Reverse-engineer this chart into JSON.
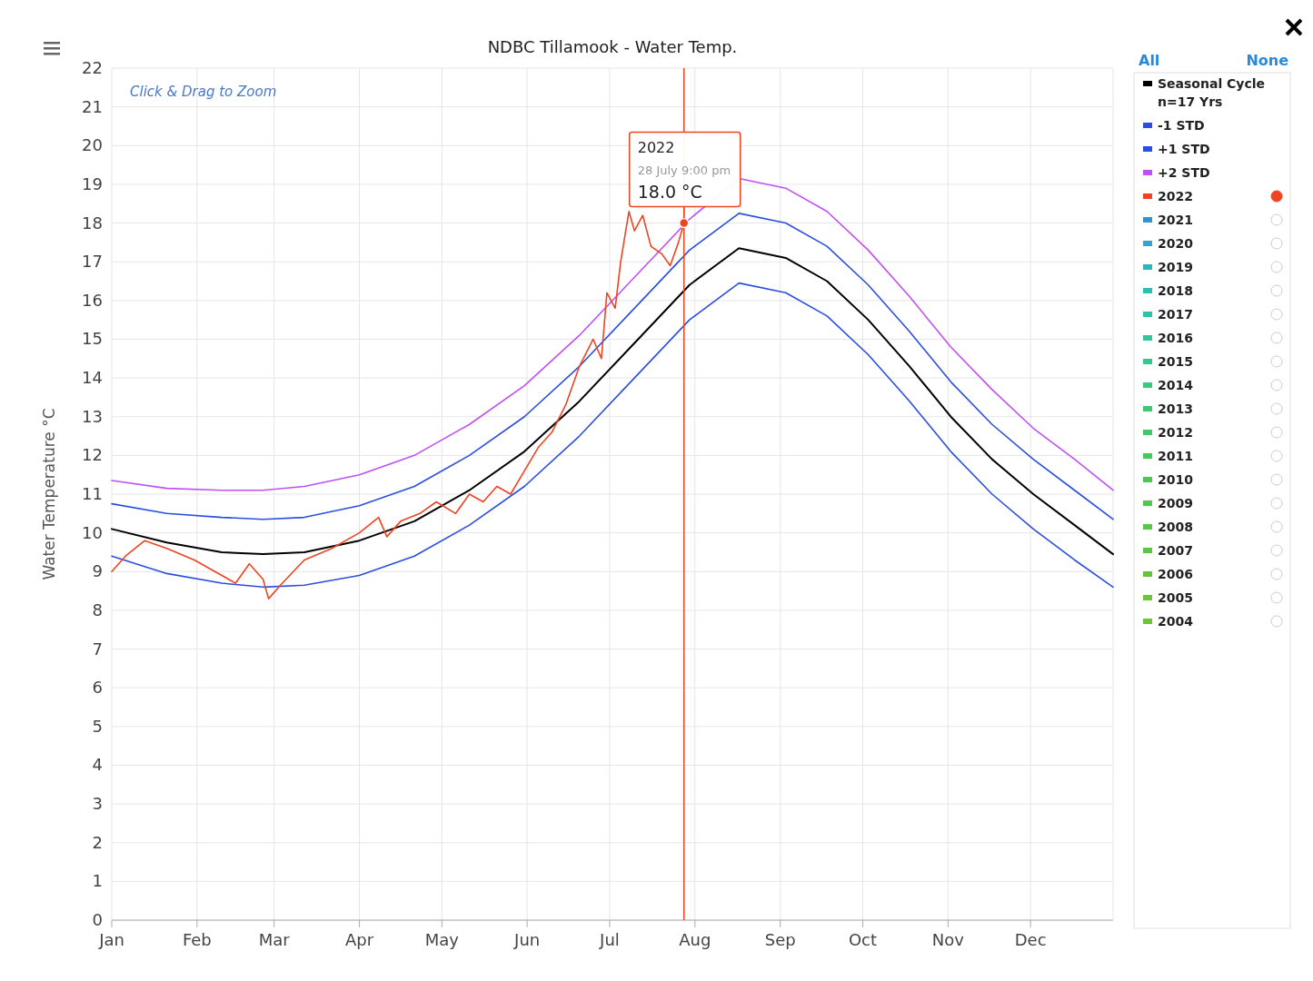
{
  "chart_data": {
    "type": "line",
    "title": "NDBC Tillamook - Water Temp.",
    "ylabel": "Water Temperature °C",
    "xlim": [
      "--01-01",
      "--12-31"
    ],
    "ylim": [
      0,
      22
    ],
    "xticks": [
      {
        "value": "--01-01",
        "label": "Jan"
      },
      {
        "value": "--02-01",
        "label": "Feb"
      },
      {
        "value": "--03-01",
        "label": "Mar"
      },
      {
        "value": "--04-01",
        "label": "Apr"
      },
      {
        "value": "--05-01",
        "label": "May"
      },
      {
        "value": "--06-01",
        "label": "Jun"
      },
      {
        "value": "--07-01",
        "label": "Jul"
      },
      {
        "value": "--08-01",
        "label": "Aug"
      },
      {
        "value": "--09-01",
        "label": "Sep"
      },
      {
        "value": "--10-01",
        "label": "Oct"
      },
      {
        "value": "--11-01",
        "label": "Nov"
      },
      {
        "value": "--12-01",
        "label": "Dec"
      }
    ],
    "yticks": [
      0,
      1,
      2,
      3,
      4,
      5,
      6,
      7,
      8,
      9,
      10,
      11,
      12,
      13,
      14,
      15,
      16,
      17,
      18,
      19,
      20,
      21,
      22
    ],
    "grid": true,
    "legend": "right",
    "marker": "none",
    "line_style": "solid",
    "x": [
      "--01-01",
      "--01-21",
      "--02-10",
      "--02-25",
      "--03-12",
      "--04-01",
      "--04-21",
      "--05-11",
      "--05-31",
      "--06-20",
      "--07-10",
      "--07-30",
      "--08-17",
      "--09-03",
      "--09-18",
      "--10-03",
      "--10-18",
      "--11-02",
      "--11-17",
      "--12-02",
      "--12-17",
      "--12-31"
    ],
    "series": [
      {
        "name": "Seasonal Cycle\nn=17 Yrs",
        "color": "#000000",
        "values": [
          10.1,
          9.75,
          9.5,
          9.45,
          9.5,
          9.8,
          10.3,
          11.1,
          12.1,
          13.4,
          14.9,
          16.4,
          17.35,
          17.1,
          16.5,
          15.5,
          14.3,
          13.0,
          11.9,
          11.0,
          10.2,
          9.45
        ]
      },
      {
        "name": "-1 STD",
        "color": "#2a4fe0",
        "values": [
          9.4,
          8.95,
          8.7,
          8.6,
          8.65,
          8.9,
          9.4,
          10.2,
          11.2,
          12.5,
          14.0,
          15.5,
          16.45,
          16.2,
          15.6,
          14.6,
          13.4,
          12.1,
          11.0,
          10.1,
          9.3,
          8.6
        ]
      },
      {
        "name": "+1 STD",
        "color": "#2a4fe0",
        "values": [
          10.75,
          10.5,
          10.4,
          10.35,
          10.4,
          10.7,
          11.2,
          12.0,
          13.0,
          14.3,
          15.8,
          17.3,
          18.25,
          18.0,
          17.4,
          16.4,
          15.2,
          13.9,
          12.8,
          11.9,
          11.1,
          10.35
        ]
      },
      {
        "name": "+2 STD",
        "color": "#c050f5",
        "values": [
          11.35,
          11.15,
          11.1,
          11.1,
          11.2,
          11.5,
          12.0,
          12.8,
          13.8,
          15.1,
          16.6,
          18.1,
          19.15,
          18.9,
          18.3,
          17.3,
          16.1,
          14.8,
          13.7,
          12.7,
          11.9,
          11.1
        ]
      },
      {
        "name": "2022",
        "color": "#ee4422",
        "x": [
          "--01-01",
          "--01-06",
          "--01-13",
          "--01-21",
          "--01-31",
          "--02-10",
          "--02-15",
          "--02-20",
          "--02-25",
          "--02-27",
          "--03-04",
          "--03-12",
          "--03-22",
          "--04-01",
          "--04-08",
          "--04-11",
          "--04-16",
          "--04-23",
          "--04-29",
          "--05-06",
          "--05-11",
          "--05-16",
          "--05-21",
          "--05-26",
          "--05-31",
          "--06-05",
          "--06-10",
          "--06-15",
          "--06-20",
          "--06-25",
          "--06-28",
          "--06-30",
          "--07-03",
          "--07-05",
          "--07-08",
          "--07-10",
          "--07-13",
          "--07-16",
          "--07-20",
          "--07-23",
          "--07-26",
          "--07-28"
        ],
        "values": [
          9.0,
          9.4,
          9.8,
          9.6,
          9.3,
          8.9,
          8.7,
          9.2,
          8.8,
          8.3,
          8.7,
          9.3,
          9.6,
          10.0,
          10.4,
          9.9,
          10.3,
          10.5,
          10.8,
          10.5,
          11.0,
          10.8,
          11.2,
          11.0,
          11.6,
          12.2,
          12.6,
          13.3,
          14.3,
          15.0,
          14.5,
          16.2,
          15.8,
          17.0,
          18.3,
          17.8,
          18.2,
          17.4,
          17.2,
          16.9,
          17.5,
          18.0
        ]
      },
      {
        "name": "2021",
        "color": "#3a8fcf",
        "values": [
          null,
          null,
          null,
          null,
          null,
          null,
          null,
          null,
          null,
          null,
          null,
          null,
          null,
          null,
          null,
          null,
          null,
          null,
          null,
          null,
          null,
          null
        ]
      },
      {
        "name": "2020",
        "color": "#35a4c9",
        "values": [
          null,
          null,
          null,
          null,
          null,
          null,
          null,
          null,
          null,
          null,
          null,
          null,
          null,
          null,
          null,
          null,
          null,
          null,
          null,
          null,
          null,
          null
        ]
      },
      {
        "name": "2019",
        "color": "#30b2c2",
        "values": [
          null,
          null,
          null,
          null,
          null,
          null,
          null,
          null,
          null,
          null,
          null,
          null,
          null,
          null,
          null,
          null,
          null,
          null,
          null,
          null,
          null,
          null
        ]
      },
      {
        "name": "2018",
        "color": "#2fbcb6",
        "values": [
          null,
          null,
          null,
          null,
          null,
          null,
          null,
          null,
          null,
          null,
          null,
          null,
          null,
          null,
          null,
          null,
          null,
          null,
          null,
          null,
          null,
          null
        ]
      },
      {
        "name": "2017",
        "color": "#30c2a8",
        "values": [
          null,
          null,
          null,
          null,
          null,
          null,
          null,
          null,
          null,
          null,
          null,
          null,
          null,
          null,
          null,
          null,
          null,
          null,
          null,
          null,
          null,
          null
        ]
      },
      {
        "name": "2016",
        "color": "#33c699",
        "values": [
          null,
          null,
          null,
          null,
          null,
          null,
          null,
          null,
          null,
          null,
          null,
          null,
          null,
          null,
          null,
          null,
          null,
          null,
          null,
          null,
          null,
          null
        ]
      },
      {
        "name": "2015",
        "color": "#36c88b",
        "values": [
          null,
          null,
          null,
          null,
          null,
          null,
          null,
          null,
          null,
          null,
          null,
          null,
          null,
          null,
          null,
          null,
          null,
          null,
          null,
          null,
          null,
          null
        ]
      },
      {
        "name": "2014",
        "color": "#3ac97e",
        "values": [
          null,
          null,
          null,
          null,
          null,
          null,
          null,
          null,
          null,
          null,
          null,
          null,
          null,
          null,
          null,
          null,
          null,
          null,
          null,
          null,
          null,
          null
        ]
      },
      {
        "name": "2013",
        "color": "#3ec873",
        "values": [
          null,
          null,
          null,
          null,
          null,
          null,
          null,
          null,
          null,
          null,
          null,
          null,
          null,
          null,
          null,
          null,
          null,
          null,
          null,
          null,
          null,
          null
        ]
      },
      {
        "name": "2012",
        "color": "#43c868",
        "values": [
          null,
          null,
          null,
          null,
          null,
          null,
          null,
          null,
          null,
          null,
          null,
          null,
          null,
          null,
          null,
          null,
          null,
          null,
          null,
          null,
          null,
          null
        ]
      },
      {
        "name": "2011",
        "color": "#48c75e",
        "values": [
          null,
          null,
          null,
          null,
          null,
          null,
          null,
          null,
          null,
          null,
          null,
          null,
          null,
          null,
          null,
          null,
          null,
          null,
          null,
          null,
          null,
          null
        ]
      },
      {
        "name": "2010",
        "color": "#4cc755",
        "values": [
          null,
          null,
          null,
          null,
          null,
          null,
          null,
          null,
          null,
          null,
          null,
          null,
          null,
          null,
          null,
          null,
          null,
          null,
          null,
          null,
          null,
          null
        ]
      },
      {
        "name": "2009",
        "color": "#52c64d",
        "values": [
          null,
          null,
          null,
          null,
          null,
          null,
          null,
          null,
          null,
          null,
          null,
          null,
          null,
          null,
          null,
          null,
          null,
          null,
          null,
          null,
          null,
          null
        ]
      },
      {
        "name": "2008",
        "color": "#58c646",
        "values": [
          null,
          null,
          null,
          null,
          null,
          null,
          null,
          null,
          null,
          null,
          null,
          null,
          null,
          null,
          null,
          null,
          null,
          null,
          null,
          null,
          null,
          null
        ]
      },
      {
        "name": "2007",
        "color": "#5ec540",
        "values": [
          null,
          null,
          null,
          null,
          null,
          null,
          null,
          null,
          null,
          null,
          null,
          null,
          null,
          null,
          null,
          null,
          null,
          null,
          null,
          null,
          null,
          null
        ]
      },
      {
        "name": "2006",
        "color": "#64c53c",
        "values": [
          null,
          null,
          null,
          null,
          null,
          null,
          null,
          null,
          null,
          null,
          null,
          null,
          null,
          null,
          null,
          null,
          null,
          null,
          null,
          null,
          null,
          null
        ]
      },
      {
        "name": "2005",
        "color": "#69c539",
        "values": [
          null,
          null,
          null,
          null,
          null,
          null,
          null,
          null,
          null,
          null,
          null,
          null,
          null,
          null,
          null,
          null,
          null,
          null,
          null,
          null,
          null,
          null
        ]
      },
      {
        "name": "2004",
        "color": "#6dc536",
        "values": [
          null,
          null,
          null,
          null,
          null,
          null,
          null,
          null,
          null,
          null,
          null,
          null,
          null,
          null,
          null,
          null,
          null,
          null,
          null,
          null,
          null,
          null
        ]
      }
    ],
    "ref_lines": [
      {
        "axis": "x",
        "value": "--07-28",
        "label": null,
        "color": "#ee4422"
      }
    ],
    "annotations": [
      "Click & Drag to Zoom",
      "All",
      "None",
      "2022",
      "28 July 9:00 pm",
      {
        "text": "18.0 °C",
        "x": "--07-28",
        "y": 18.0
      }
    ]
  }
}
